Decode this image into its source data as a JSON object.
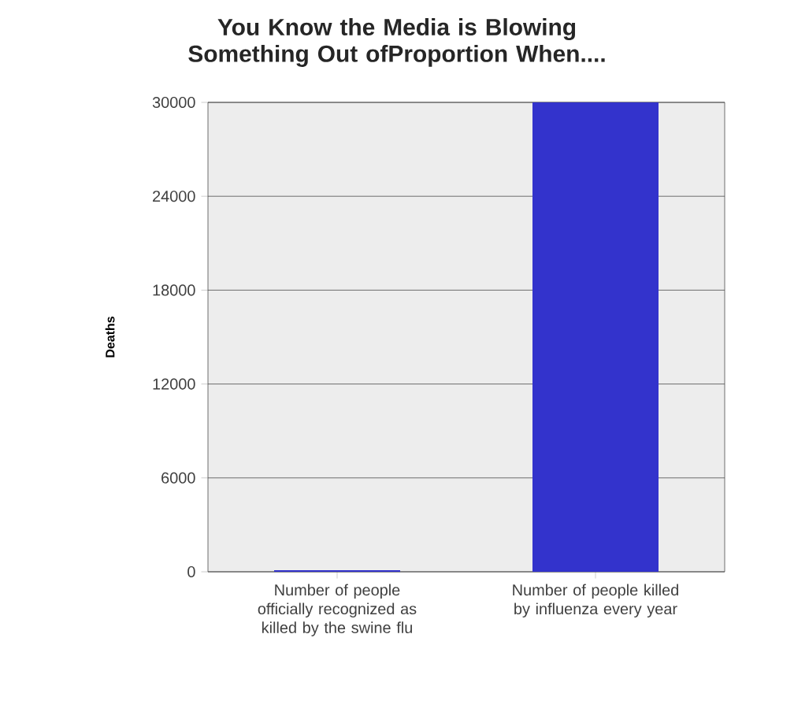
{
  "chart_data": {
    "type": "bar",
    "title": "You Know the Media is Blowing Something Out ofProportion When....",
    "ylabel": "Deaths",
    "categories": [
      "Number of people officially recognized as killed by the swine flu",
      "Number of people killed by influenza every year"
    ],
    "values": [
      100,
      30000
    ],
    "color": "#3333cc",
    "ylim": [
      0,
      30000
    ],
    "yticks": [
      0,
      6000,
      12000,
      18000,
      24000,
      30000
    ],
    "grid": "y"
  }
}
